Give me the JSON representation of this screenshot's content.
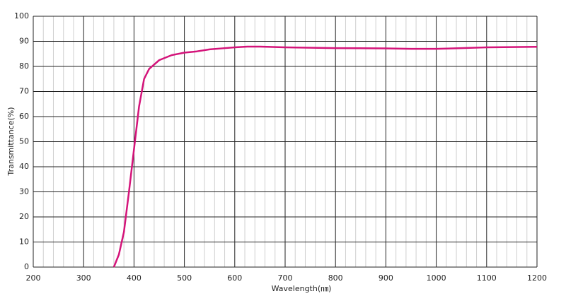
{
  "chart_data": {
    "type": "line",
    "x_label": "Wavelength(㎚)",
    "y_label": "Transmittance(%)",
    "x": [
      360,
      370,
      380,
      390,
      400,
      410,
      420,
      430,
      450,
      475,
      500,
      525,
      550,
      575,
      600,
      625,
      650,
      700,
      800,
      900,
      950,
      1000,
      1050,
      1100,
      1200
    ],
    "series": [
      {
        "name": "Transmittance",
        "color": "#d4147a",
        "values": [
          0,
          5,
          14,
          30,
          47,
          64,
          75,
          79,
          82.5,
          84.5,
          85.5,
          86,
          86.8,
          87.2,
          87.6,
          87.9,
          87.9,
          87.6,
          87.3,
          87.2,
          87,
          87,
          87.3,
          87.6,
          87.8
        ]
      }
    ],
    "xlim": [
      200,
      1200
    ],
    "xticks": [
      200,
      300,
      400,
      500,
      600,
      700,
      800,
      900,
      1000,
      1100,
      1200
    ],
    "xminorticks": [
      220,
      240,
      260,
      280,
      320,
      340,
      360,
      380,
      420,
      440,
      460,
      480,
      520,
      540,
      560,
      580,
      620,
      640,
      660,
      680,
      720,
      740,
      760,
      780,
      820,
      840,
      860,
      880,
      920,
      940,
      960,
      980,
      1020,
      1040,
      1060,
      1080,
      1120,
      1140,
      1160,
      1180
    ],
    "ylim": [
      0,
      100
    ],
    "yticks": [
      0,
      10,
      20,
      30,
      40,
      50,
      60,
      70,
      80,
      90,
      100
    ],
    "grid": true
  }
}
